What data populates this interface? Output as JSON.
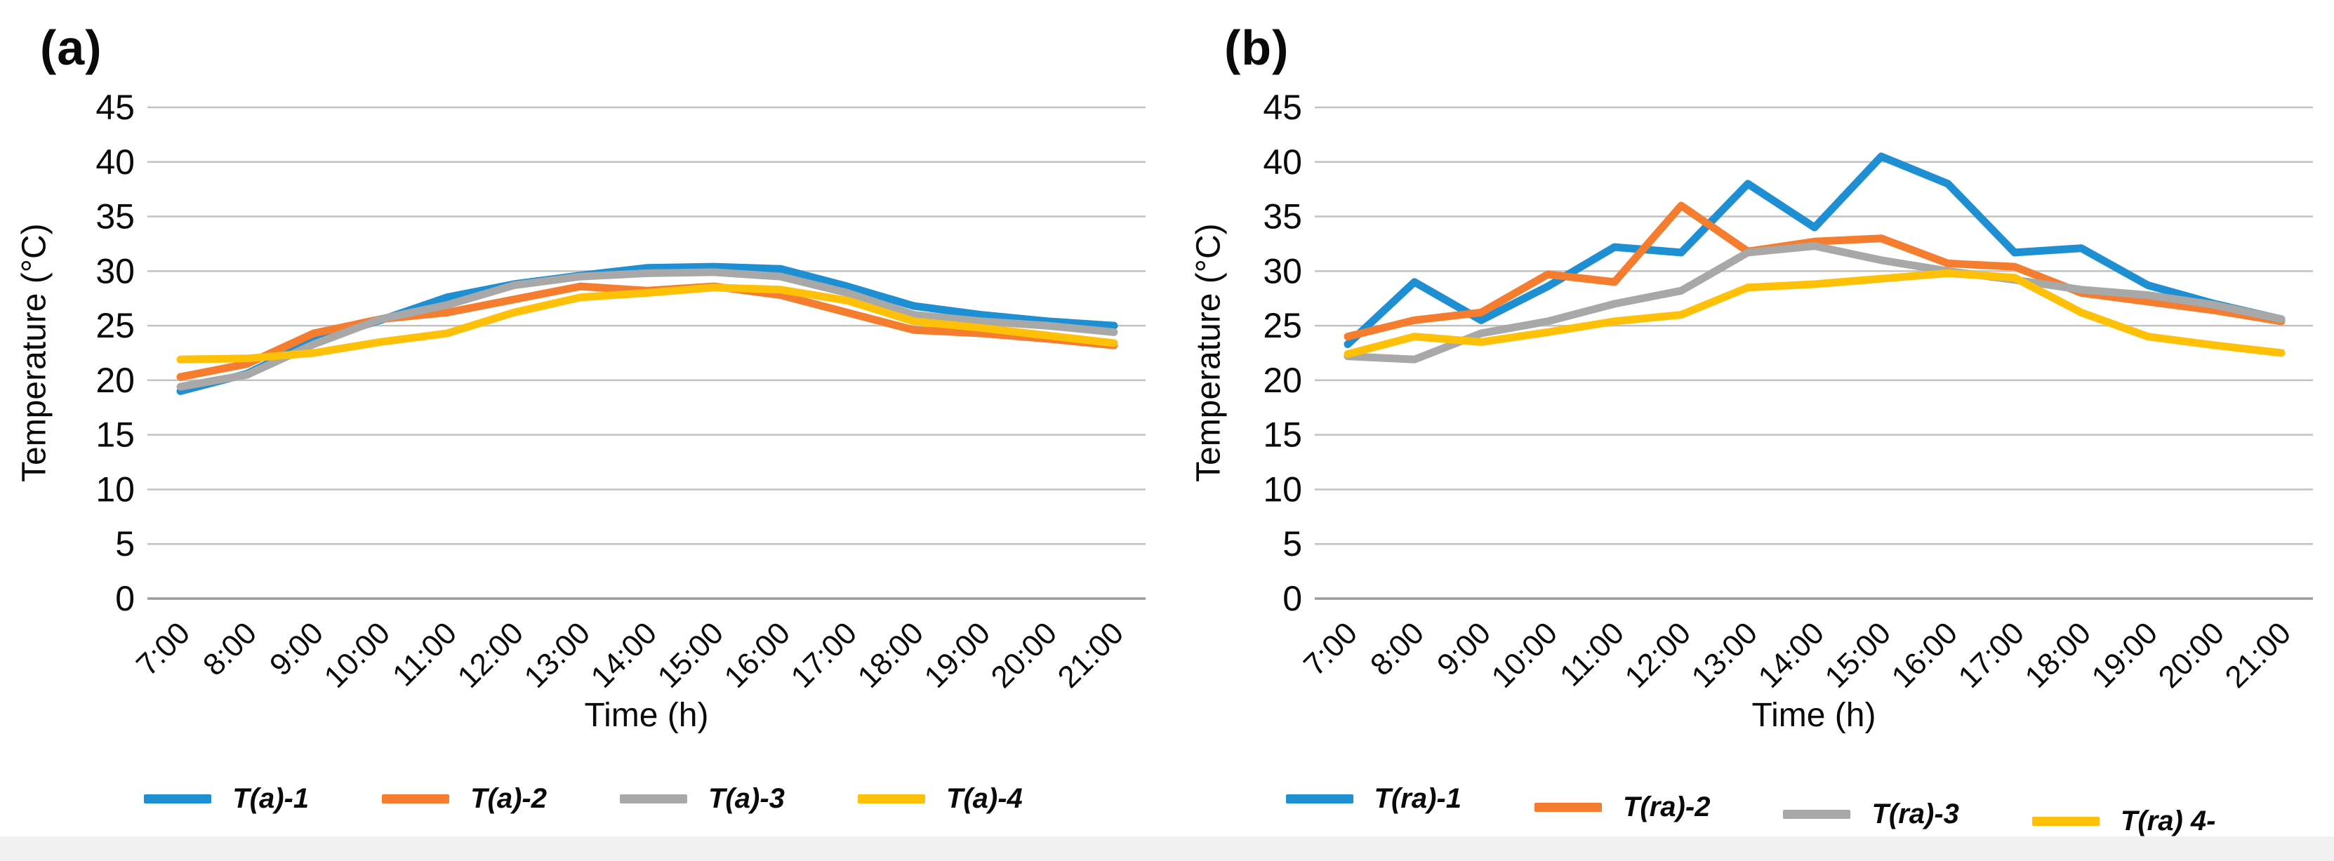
{
  "figure": {
    "y_axis_title": "Temperature (°C)",
    "x_axis_title": "Time (h)"
  },
  "colors": {
    "series_blue": "#1E8FD2",
    "series_orange": "#F57D2F",
    "series_gray": "#A8A8A8",
    "series_yellow": "#FFC008",
    "gridline": "#C2C2C2",
    "axis_line": "#9C9C9C",
    "text": "#0A0A0A",
    "footer_strip": "#F1F1F1"
  },
  "chart_data": [
    {
      "type": "line",
      "panel_label": "(a)",
      "xlabel": "Time (h)",
      "ylabel": "Temperature (°C)",
      "ylim": [
        0,
        45
      ],
      "yticks": [
        45,
        40,
        35,
        30,
        25,
        20,
        15,
        10,
        5,
        0
      ],
      "grid": true,
      "legend_position": "bottom",
      "categories": [
        "7:00",
        "8:00",
        "9:00",
        "10:00",
        "11:00",
        "12:00",
        "13:00",
        "14:00",
        "15:00",
        "16:00",
        "17:00",
        "18:00",
        "19:00",
        "20:00",
        "21:00"
      ],
      "series": [
        {
          "name": "T(a)-1",
          "color": "#1E8FD2",
          "values": [
            19.0,
            20.6,
            23.6,
            25.5,
            27.6,
            28.8,
            29.6,
            30.3,
            30.4,
            30.2,
            28.6,
            26.8,
            26.0,
            25.4,
            25.0
          ]
        },
        {
          "name": "T(a)-2",
          "color": "#F57D2F",
          "values": [
            20.3,
            21.5,
            24.3,
            25.6,
            26.2,
            27.4,
            28.6,
            28.2,
            28.6,
            27.8,
            26.2,
            24.6,
            24.3,
            23.8,
            23.2
          ]
        },
        {
          "name": "T(a)-3",
          "color": "#A8A8A8",
          "values": [
            19.4,
            20.5,
            23.3,
            25.6,
            26.9,
            28.7,
            29.5,
            29.8,
            29.9,
            29.5,
            28.0,
            26.0,
            25.4,
            25.0,
            24.4
          ]
        },
        {
          "name": "T(a)-4",
          "color": "#FFC008",
          "values": [
            21.9,
            22.0,
            22.5,
            23.5,
            24.3,
            26.2,
            27.6,
            28.0,
            28.5,
            28.3,
            27.3,
            25.4,
            24.8,
            24.1,
            23.4
          ]
        }
      ]
    },
    {
      "type": "line",
      "panel_label": "(b)",
      "xlabel": "Time (h)",
      "ylabel": "Temperature (°C)",
      "ylim": [
        0,
        45
      ],
      "yticks": [
        45,
        40,
        35,
        30,
        25,
        20,
        15,
        10,
        5,
        0
      ],
      "grid": true,
      "legend_position": "bottom",
      "categories": [
        "7:00",
        "8:00",
        "9:00",
        "10:00",
        "11:00",
        "12:00",
        "13:00",
        "14:00",
        "15:00",
        "16:00",
        "17:00",
        "18:00",
        "19:00",
        "20:00",
        "21:00"
      ],
      "series": [
        {
          "name": "T(ra)-1",
          "color": "#1E8FD2",
          "values": [
            23.3,
            29.0,
            25.5,
            28.6,
            32.2,
            31.7,
            38.0,
            34.0,
            40.5,
            38.0,
            31.7,
            32.1,
            28.7,
            27.0,
            25.6
          ]
        },
        {
          "name": "T(ra)-2",
          "color": "#F57D2F",
          "values": [
            24.0,
            25.5,
            26.2,
            29.7,
            29.0,
            36.0,
            31.8,
            32.7,
            33.0,
            30.7,
            30.4,
            28.0,
            27.2,
            26.4,
            25.4
          ]
        },
        {
          "name": "T(ra)-3",
          "color": "#A8A8A8",
          "values": [
            22.2,
            21.9,
            24.3,
            25.4,
            27.0,
            28.2,
            31.7,
            32.3,
            31.0,
            30.0,
            29.2,
            28.3,
            27.8,
            26.9,
            25.6
          ]
        },
        {
          "name": "T(ra) 4-",
          "color": "#FFC008",
          "values": [
            22.4,
            24.0,
            23.5,
            24.4,
            25.4,
            26.0,
            28.5,
            28.8,
            29.3,
            29.8,
            29.4,
            26.2,
            24.0,
            23.2,
            22.5
          ]
        }
      ]
    }
  ]
}
